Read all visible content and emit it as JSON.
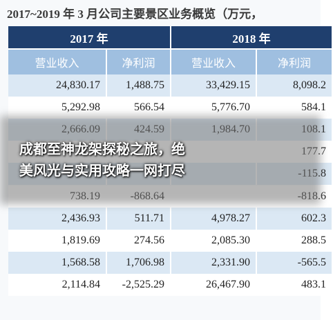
{
  "header": {
    "title": "2017~2019 年 3 月公司主要景区业务概览（万元，"
  },
  "table": {
    "years": [
      "2017 年",
      "2018 年"
    ],
    "columns": [
      "营业收入",
      "净利润",
      "营业收入",
      "净利润"
    ],
    "rows": [
      [
        "24,830.17",
        "1,488.75",
        "33,429.15",
        "8,098.2"
      ],
      [
        "5,292.98",
        "566.54",
        "5,776.70",
        "584.1"
      ],
      [
        "2,666.09",
        "424.59",
        "1,984.70",
        "108.1"
      ],
      [
        null,
        null,
        null,
        "177.7"
      ],
      [
        null,
        null,
        null,
        "-115.8"
      ],
      [
        "738.19",
        "-868.64",
        null,
        "-818.6"
      ],
      [
        "2,436.93",
        "511.71",
        "4,978.27",
        "602.3"
      ],
      [
        "1,819.69",
        "274.56",
        "2,085.30",
        "288.5"
      ],
      [
        "1,568.58",
        "1,706.98",
        "2,331.90",
        "-565.5"
      ],
      [
        "2,114.84",
        "-2,525.29",
        "26,467.90",
        "483.1"
      ]
    ]
  },
  "overlay": {
    "lines": [
      "成都至神龙架探秘之旅，绝",
      "美风光与实用攻略一网打尽"
    ]
  }
}
